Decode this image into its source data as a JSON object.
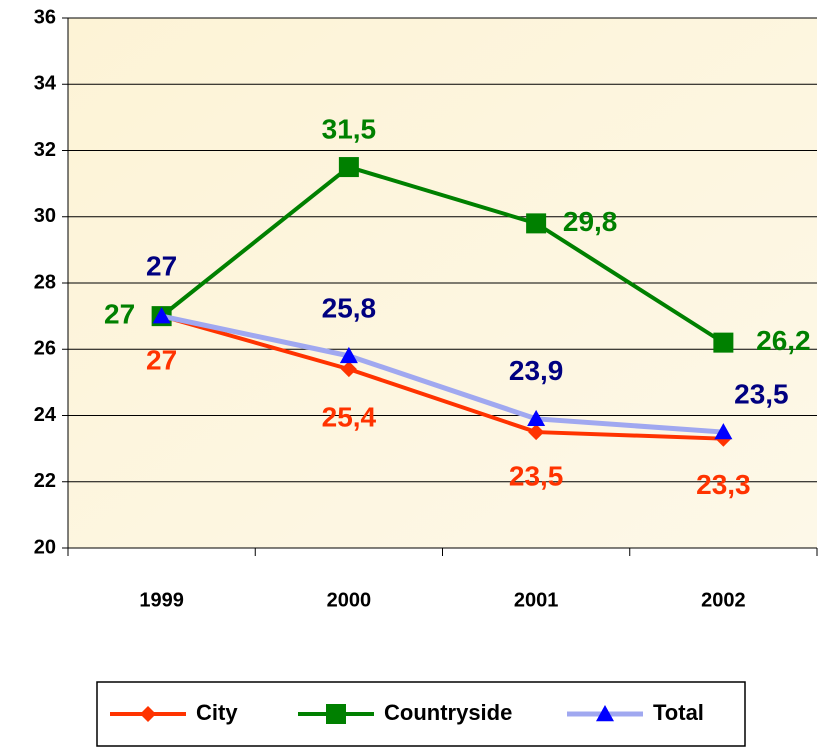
{
  "chart_data": {
    "type": "line",
    "categories": [
      "1999",
      "2000",
      "2001",
      "2002"
    ],
    "series": [
      {
        "name": "City",
        "color": "#ff3300",
        "marker": "diamond",
        "values": [
          27,
          25.4,
          23.5,
          23.3
        ],
        "value_labels": [
          "27",
          "25,4",
          "23,5",
          "23,3"
        ]
      },
      {
        "name": "Countryside",
        "color": "#008000",
        "marker": "square",
        "values": [
          27,
          31.5,
          29.8,
          26.2
        ],
        "value_labels": [
          "27",
          "31,5",
          "29,8",
          "26,2"
        ]
      },
      {
        "name": "Total",
        "color": "#0000ff",
        "line_color": "#a0a8f0",
        "label_color": "#000080",
        "marker": "triangle",
        "values": [
          27,
          25.8,
          23.9,
          23.5
        ],
        "value_labels": [
          "27",
          "25,8",
          "23,9",
          "23,5"
        ]
      }
    ],
    "ylim": [
      20,
      36
    ],
    "yticks": [
      20,
      22,
      24,
      26,
      28,
      30,
      32,
      34,
      36
    ],
    "grid": true,
    "legend": "bottom"
  }
}
